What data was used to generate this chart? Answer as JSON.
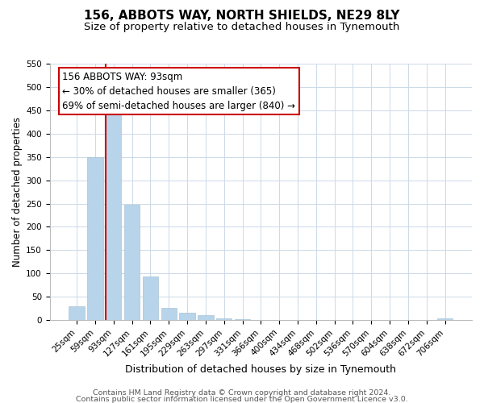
{
  "title": "156, ABBOTS WAY, NORTH SHIELDS, NE29 8LY",
  "subtitle": "Size of property relative to detached houses in Tynemouth",
  "xlabel": "Distribution of detached houses by size in Tynemouth",
  "ylabel": "Number of detached properties",
  "bar_labels": [
    "25sqm",
    "59sqm",
    "93sqm",
    "127sqm",
    "161sqm",
    "195sqm",
    "229sqm",
    "263sqm",
    "297sqm",
    "331sqm",
    "366sqm",
    "400sqm",
    "434sqm",
    "468sqm",
    "502sqm",
    "536sqm",
    "570sqm",
    "604sqm",
    "638sqm",
    "672sqm",
    "706sqm"
  ],
  "bar_values": [
    30,
    350,
    448,
    248,
    93,
    26,
    16,
    10,
    4,
    2,
    0,
    0,
    0,
    0,
    0,
    0,
    0,
    0,
    0,
    0,
    3
  ],
  "bar_color": "#b8d4ea",
  "highlight_index": 2,
  "highlight_color": "#cc0000",
  "ylim": [
    0,
    550
  ],
  "yticks": [
    0,
    50,
    100,
    150,
    200,
    250,
    300,
    350,
    400,
    450,
    500,
    550
  ],
  "annotation_title": "156 ABBOTS WAY: 93sqm",
  "annotation_line1": "← 30% of detached houses are smaller (365)",
  "annotation_line2": "69% of semi-detached houses are larger (840) →",
  "footnote1": "Contains HM Land Registry data © Crown copyright and database right 2024.",
  "footnote2": "Contains public sector information licensed under the Open Government Licence v3.0.",
  "title_fontsize": 11,
  "subtitle_fontsize": 9.5,
  "xlabel_fontsize": 9,
  "ylabel_fontsize": 8.5,
  "tick_fontsize": 7.5,
  "annotation_fontsize": 8.5,
  "footnote_fontsize": 6.8,
  "background_color": "#ffffff",
  "grid_color": "#ccd9e8"
}
